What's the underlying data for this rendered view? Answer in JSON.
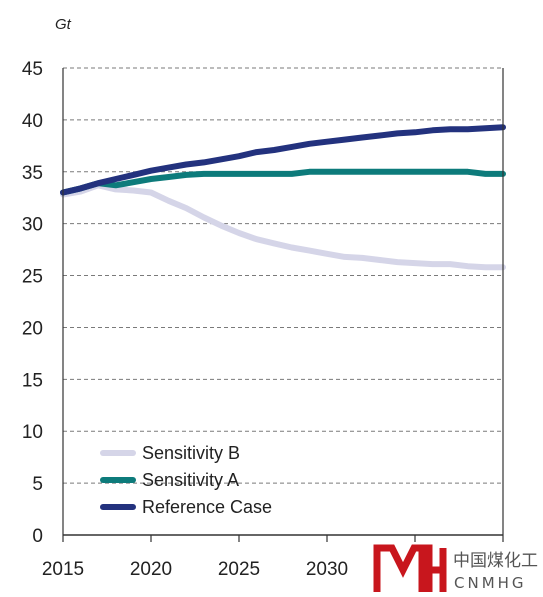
{
  "chart_data": {
    "type": "line",
    "title": "",
    "unit_label": "Gt",
    "xlabel": "",
    "ylabel": "",
    "xlim": [
      2015,
      2040
    ],
    "ylim": [
      0,
      45
    ],
    "x_ticks": [
      2015,
      2020,
      2025,
      2030
    ],
    "y_ticks": [
      0,
      5,
      10,
      15,
      20,
      25,
      30,
      35,
      40,
      45
    ],
    "grid": "horizontal dashed",
    "legend_position": "lower-left",
    "series": [
      {
        "name": "Sensitivity B",
        "color": "#d5d5e8",
        "x": [
          2015,
          2016,
          2017,
          2018,
          2019,
          2020,
          2021,
          2022,
          2023,
          2024,
          2025,
          2026,
          2027,
          2028,
          2029,
          2030,
          2031,
          2032,
          2033,
          2034,
          2035,
          2036,
          2037,
          2038,
          2039,
          2040
        ],
        "values": [
          32.8,
          33.1,
          33.7,
          33.3,
          33.2,
          33.0,
          32.2,
          31.5,
          30.6,
          29.8,
          29.1,
          28.5,
          28.1,
          27.7,
          27.4,
          27.1,
          26.8,
          26.7,
          26.5,
          26.3,
          26.2,
          26.1,
          26.1,
          25.9,
          25.8,
          25.8
        ]
      },
      {
        "name": "Sensitivity A",
        "color": "#0d7b7b",
        "x": [
          2015,
          2016,
          2017,
          2018,
          2019,
          2020,
          2021,
          2022,
          2023,
          2024,
          2025,
          2026,
          2027,
          2028,
          2029,
          2030,
          2031,
          2032,
          2033,
          2034,
          2035,
          2036,
          2037,
          2038,
          2039,
          2040
        ],
        "values": [
          33.0,
          33.4,
          33.9,
          33.7,
          34.0,
          34.3,
          34.5,
          34.7,
          34.8,
          34.8,
          34.8,
          34.8,
          34.8,
          34.8,
          35.0,
          35.0,
          35.0,
          35.0,
          35.0,
          35.0,
          35.0,
          35.0,
          35.0,
          35.0,
          34.8,
          34.8
        ]
      },
      {
        "name": "Reference Case",
        "color": "#23327e",
        "x": [
          2015,
          2016,
          2017,
          2018,
          2019,
          2020,
          2021,
          2022,
          2023,
          2024,
          2025,
          2026,
          2027,
          2028,
          2029,
          2030,
          2031,
          2032,
          2033,
          2034,
          2035,
          2036,
          2037,
          2038,
          2039,
          2040
        ],
        "values": [
          33.0,
          33.4,
          33.9,
          34.3,
          34.7,
          35.1,
          35.4,
          35.7,
          35.9,
          36.2,
          36.5,
          36.9,
          37.1,
          37.4,
          37.7,
          37.9,
          38.1,
          38.3,
          38.5,
          38.7,
          38.8,
          39.0,
          39.1,
          39.1,
          39.2,
          39.3
        ]
      }
    ]
  },
  "watermark": {
    "text_cn": "中国煤化工",
    "text_en": "CNMHG",
    "color": "#c8161d"
  }
}
